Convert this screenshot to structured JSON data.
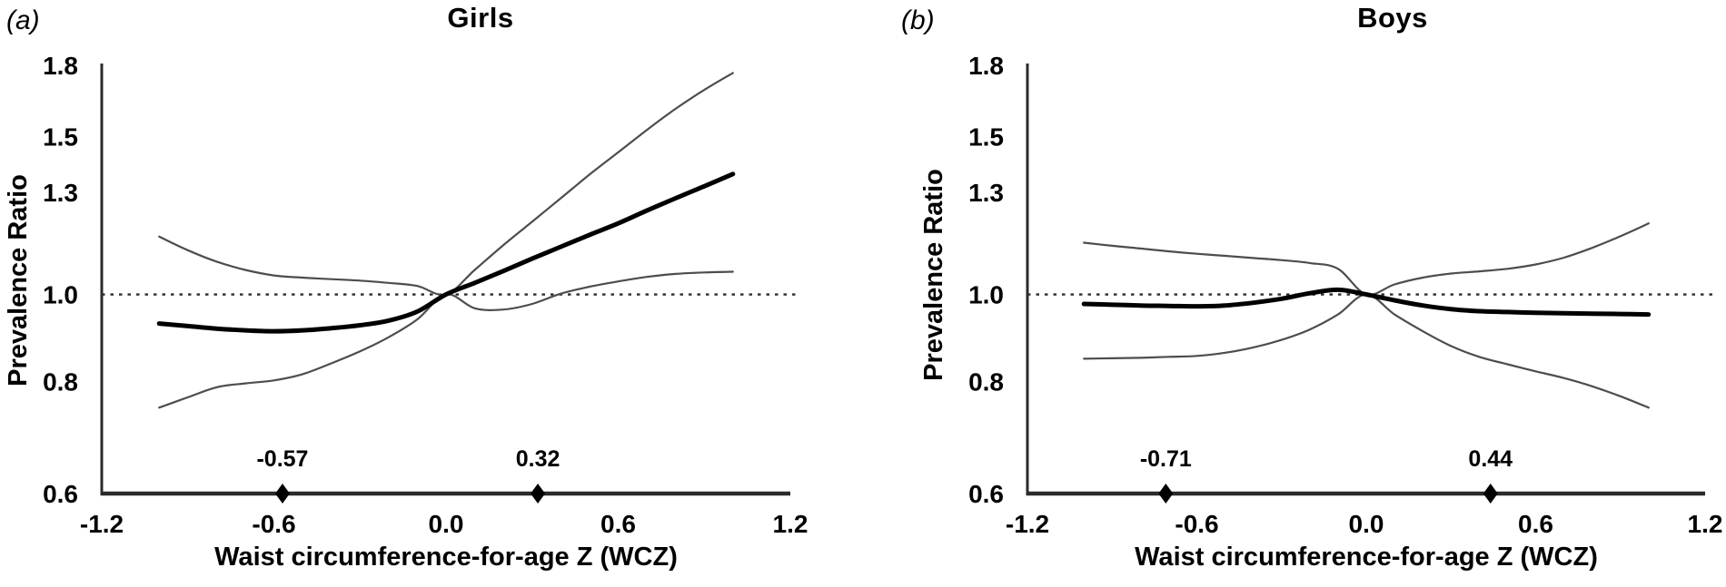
{
  "figure_labels": {
    "panel_a_index": "(a)",
    "panel_b_index": "(b)"
  },
  "colors": {
    "estimate_line": "#000000",
    "ci_line": "#4d4d4d",
    "reference_line": "#2b2b2b",
    "axis": "#2b2b2b",
    "text": "#000000",
    "background": "#ffffff"
  },
  "chart_data": [
    {
      "panel": "a",
      "type": "line",
      "title": "Girls",
      "xlabel": "Waist circumference-for-age Z (WCZ)",
      "ylabel": "Prevalence Ratio",
      "y_scale": "log",
      "xlim": [
        -1.2,
        1.2
      ],
      "ylim": [
        0.6,
        1.8
      ],
      "x_tick_labels": [
        "-1.2",
        "-0.6",
        "0.0",
        "0.6",
        "1.2"
      ],
      "x_tick_values": [
        -1.2,
        -0.6,
        0.0,
        0.6,
        1.2
      ],
      "y_tick_labels": [
        "1.8",
        "1.5",
        "1.3",
        "1.0",
        "0.8",
        "0.6"
      ],
      "y_tick_values": [
        1.8,
        1.5,
        1.3,
        1.0,
        0.8,
        0.6
      ],
      "grid": false,
      "legend": "none",
      "reference_line": 1.0,
      "spline_knots": [
        {
          "value": -0.57,
          "label": "-0.57"
        },
        {
          "value": 0.32,
          "label": "0.32"
        }
      ],
      "x": [
        -1.0,
        -0.9,
        -0.8,
        -0.7,
        -0.6,
        -0.5,
        -0.4,
        -0.3,
        -0.2,
        -0.1,
        0.0,
        0.1,
        0.2,
        0.3,
        0.4,
        0.5,
        0.6,
        0.7,
        0.8,
        0.9,
        1.0
      ],
      "series": [
        {
          "name": "upper_95ci",
          "line": "thin",
          "values": [
            1.16,
            1.12,
            1.088,
            1.065,
            1.05,
            1.044,
            1.04,
            1.036,
            1.03,
            1.022,
            1.0,
            1.065,
            1.135,
            1.205,
            1.28,
            1.36,
            1.44,
            1.525,
            1.61,
            1.69,
            1.765
          ]
        },
        {
          "name": "lower_95ci",
          "line": "thin",
          "values": [
            0.748,
            0.768,
            0.788,
            0.796,
            0.802,
            0.815,
            0.838,
            0.864,
            0.896,
            0.938,
            1.0,
            0.965,
            0.962,
            0.976,
            1.002,
            1.02,
            1.034,
            1.046,
            1.054,
            1.058,
            1.06
          ]
        },
        {
          "name": "estimate",
          "line": "thick",
          "values": [
            0.928,
            0.922,
            0.916,
            0.912,
            0.91,
            0.912,
            0.917,
            0.924,
            0.935,
            0.957,
            1.0,
            1.03,
            1.062,
            1.096,
            1.13,
            1.165,
            1.2,
            1.24,
            1.28,
            1.32,
            1.362
          ]
        }
      ]
    },
    {
      "panel": "b",
      "type": "line",
      "title": "Boys",
      "xlabel": "Waist circumference-for-age Z (WCZ)",
      "ylabel": "Prevalence Ratio",
      "y_scale": "log",
      "xlim": [
        -1.2,
        1.2
      ],
      "ylim": [
        0.6,
        1.8
      ],
      "x_tick_labels": [
        "-1.2",
        "-0.6",
        "0.0",
        "0.6",
        "1.2"
      ],
      "x_tick_values": [
        -1.2,
        -0.6,
        0.0,
        0.6,
        1.2
      ],
      "y_tick_labels": [
        "1.8",
        "1.5",
        "1.3",
        "1.0",
        "0.8",
        "0.6"
      ],
      "y_tick_values": [
        1.8,
        1.5,
        1.3,
        1.0,
        0.8,
        0.6
      ],
      "grid": false,
      "legend": "none",
      "reference_line": 1.0,
      "spline_knots": [
        {
          "value": -0.71,
          "label": "-0.71"
        },
        {
          "value": 0.44,
          "label": "0.44"
        }
      ],
      "x": [
        -1.0,
        -0.9,
        -0.8,
        -0.7,
        -0.6,
        -0.5,
        -0.4,
        -0.3,
        -0.2,
        -0.1,
        0.0,
        0.1,
        0.2,
        0.3,
        0.4,
        0.5,
        0.6,
        0.7,
        0.8,
        0.9,
        1.0
      ],
      "series": [
        {
          "name": "upper_95ci",
          "line": "thin",
          "values": [
            1.142,
            1.133,
            1.125,
            1.117,
            1.11,
            1.104,
            1.098,
            1.092,
            1.084,
            1.068,
            1.0,
            1.026,
            1.044,
            1.055,
            1.061,
            1.068,
            1.08,
            1.099,
            1.127,
            1.161,
            1.2
          ]
        },
        {
          "name": "lower_95ci",
          "line": "thin",
          "values": [
            0.848,
            0.849,
            0.85,
            0.852,
            0.854,
            0.861,
            0.873,
            0.89,
            0.914,
            0.95,
            1.0,
            0.95,
            0.91,
            0.876,
            0.852,
            0.836,
            0.821,
            0.807,
            0.79,
            0.77,
            0.748
          ]
        },
        {
          "name": "estimate",
          "line": "thick",
          "values": [
            0.976,
            0.974,
            0.972,
            0.971,
            0.97,
            0.972,
            0.979,
            0.989,
            1.003,
            1.012,
            1.0,
            0.985,
            0.972,
            0.963,
            0.958,
            0.956,
            0.954,
            0.953,
            0.952,
            0.951,
            0.95
          ]
        }
      ]
    }
  ]
}
